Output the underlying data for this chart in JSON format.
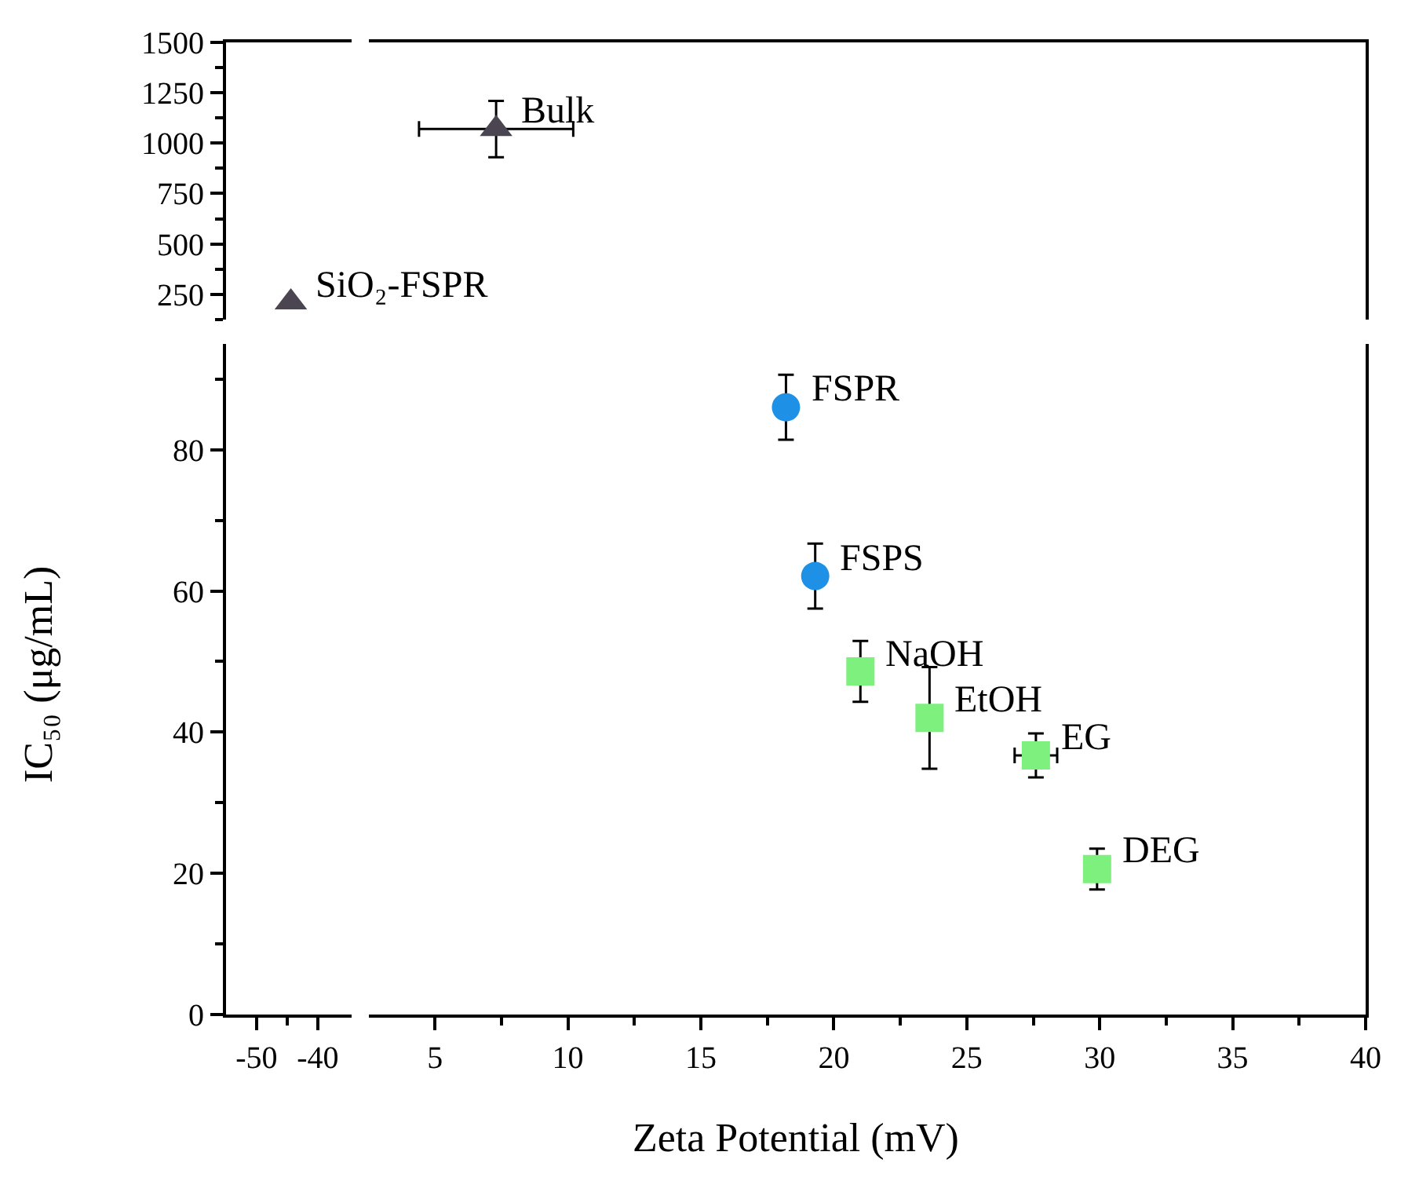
{
  "chart_data": [
    {
      "type": "scatter",
      "xlim": [
        -55,
        -34.5
      ],
      "ylim": [
        125,
        1500
      ],
      "yticks": [
        {
          "value": 125,
          "label": null
        },
        250,
        {
          "value": 375,
          "label": null
        },
        500,
        {
          "value": 625,
          "label": null
        },
        750,
        {
          "value": 875,
          "label": null
        },
        1000,
        {
          "value": 1125,
          "label": null
        },
        1250,
        {
          "value": 1375,
          "label": null
        },
        1500
      ],
      "tick_labels": "y",
      "series": [
        {
          "color": "#4a4550",
          "marker": "triangle",
          "x": [
            -44.4
          ],
          "values": [
            210
          ]
        }
      ],
      "annotations": [
        {
          "text": "SiO₂-FSPR",
          "x": -44.4,
          "y": 210
        }
      ]
    },
    {
      "type": "scatter",
      "xlim": [
        2.5,
        40
      ],
      "ylim": [
        125,
        1500
      ],
      "tick_labels": false,
      "series": [
        {
          "color": "#4a4550",
          "marker": "triangle",
          "x": [
            7.3
          ],
          "values": [
            1070
          ],
          "errors": [
            140
          ],
          "xerrors": [
            2.9
          ]
        }
      ],
      "annotations": [
        {
          "text": "Bulk",
          "x": 7.3,
          "y": 1070
        }
      ]
    },
    {
      "type": "scatter",
      "xlim": [
        -55,
        -34.5
      ],
      "ylim": [
        0,
        95
      ],
      "xticks": [
        -50,
        {
          "value": -45,
          "label": null
        },
        -40
      ],
      "yticks": [
        0,
        {
          "value": 10,
          "label": null
        },
        20,
        {
          "value": 30,
          "label": null
        },
        40,
        {
          "value": 50,
          "label": null
        },
        60,
        {
          "value": 70,
          "label": null
        },
        80,
        {
          "value": 90,
          "label": null
        }
      ],
      "ylabel": "IC₅₀ (μg/mL)"
    },
    {
      "type": "scatter",
      "xlim": [
        2.5,
        40
      ],
      "ylim": [
        0,
        95
      ],
      "xticks": [
        5,
        {
          "value": 7.5,
          "label": null
        },
        10,
        {
          "value": 12.5,
          "label": null
        },
        15,
        {
          "value": 17.5,
          "label": null
        },
        20,
        {
          "value": 22.5,
          "label": null
        },
        25,
        {
          "value": 27.5,
          "label": null
        },
        30,
        {
          "value": 32.5,
          "label": null
        },
        35,
        {
          "value": 37.5,
          "label": null
        },
        40
      ],
      "tick_labels": "x",
      "xlabel": "Zeta Potential (mV)",
      "series": [
        {
          "color": "#1e90e6",
          "marker": "circle",
          "x": [
            18.2,
            19.3
          ],
          "values": [
            86,
            62.1
          ],
          "errors": [
            4.6,
            4.6
          ]
        },
        {
          "color": "#7ef07e",
          "marker": "square",
          "x": [
            21.0,
            23.6,
            27.6,
            29.9
          ],
          "values": [
            48.6,
            42,
            36.7,
            20.6
          ],
          "errors": [
            4.3,
            7.2,
            3.1,
            2.9
          ],
          "xerrors": [
            null,
            null,
            0.8,
            null
          ]
        }
      ],
      "annotations": [
        {
          "text": "FSPR",
          "x": 18.2,
          "y": 86
        },
        {
          "text": "FSPS",
          "x": 19.3,
          "y": 62.1
        },
        {
          "text": "NaOH",
          "x": 21.0,
          "y": 48.6
        },
        {
          "text": "EtOH",
          "x": 23.6,
          "y": 42
        },
        {
          "text": "EG",
          "x": 27.6,
          "y": 36.7
        },
        {
          "text": "DEG",
          "x": 29.9,
          "y": 20.6
        }
      ]
    }
  ]
}
